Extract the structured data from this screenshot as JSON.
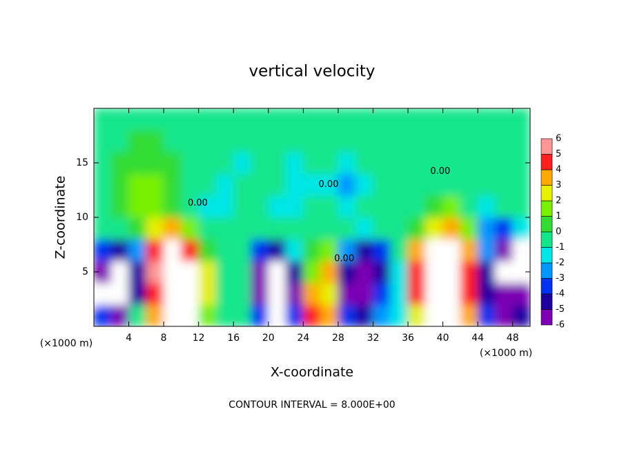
{
  "chart_data": {
    "type": "contour",
    "title": "vertical velocity",
    "x_label": "X-coordinate",
    "y_label": "Z-coordinate",
    "x_unit_left": "(×1000 m)",
    "x_unit_right": "(×1000 m)",
    "footer": "CONTOUR INTERVAL = 8.000E+00",
    "xlim": [
      0,
      50
    ],
    "ylim": [
      0,
      20
    ],
    "xticks": [
      4,
      8,
      12,
      16,
      20,
      24,
      28,
      32,
      36,
      40,
      44,
      48
    ],
    "yticks": [
      5,
      10,
      15
    ],
    "x": [
      1,
      3,
      5,
      7,
      9,
      11,
      13,
      15,
      17,
      19,
      21,
      23,
      25,
      27,
      29,
      31,
      33,
      35,
      37,
      39,
      41,
      43,
      45,
      47,
      49
    ],
    "y": [
      1,
      3,
      5,
      7,
      9,
      11,
      13,
      15,
      17,
      19
    ],
    "z": [
      [
        -3,
        -6,
        0,
        4,
        7,
        7,
        2,
        0,
        0,
        -3,
        -7,
        -3,
        5,
        4,
        -3,
        -4,
        -2,
        -1,
        3,
        7,
        7,
        4,
        -3,
        -5,
        -4
      ],
      [
        -7,
        -7,
        -4,
        5,
        8,
        8,
        3,
        0,
        0,
        -5,
        -8,
        -5,
        4,
        3,
        -5,
        -5,
        -3,
        -1,
        5,
        8,
        8,
        5,
        -4,
        -6,
        -5
      ],
      [
        -5,
        -7,
        -4,
        6,
        8,
        8,
        3,
        0,
        0,
        -5,
        -7,
        -4,
        2,
        4,
        -4,
        -5,
        -4,
        -1,
        5,
        8,
        8,
        5,
        -4,
        -7,
        -7
      ],
      [
        -3,
        -4,
        -2,
        5,
        7,
        5,
        1,
        0,
        0,
        -3,
        -4,
        -1,
        1,
        2,
        -2,
        -4,
        -3,
        0,
        4,
        7,
        8,
        4,
        -2,
        -6,
        -7
      ],
      [
        0,
        0,
        1,
        3,
        4,
        2,
        0,
        0,
        0,
        0,
        0,
        0,
        0,
        0,
        0,
        -1,
        0,
        0,
        1,
        3,
        4,
        2,
        -2,
        -3,
        -1
      ],
      [
        0,
        1,
        2,
        2,
        1,
        0,
        -1,
        -1,
        0,
        0,
        -1,
        -1,
        0,
        0,
        -1,
        0,
        0,
        0,
        0,
        1,
        2,
        0,
        -1,
        0,
        0
      ],
      [
        0,
        1,
        2,
        2,
        1,
        0,
        0,
        -1,
        0,
        0,
        0,
        -1,
        -1,
        -1,
        -2,
        -1,
        0,
        0,
        0,
        0,
        0,
        0,
        0,
        0,
        0
      ],
      [
        0,
        1,
        1,
        1,
        1,
        0,
        0,
        0,
        -1,
        0,
        0,
        -1,
        0,
        0,
        -1,
        0,
        0,
        0,
        0,
        0,
        0,
        0,
        0,
        0,
        0
      ],
      [
        0,
        0,
        1,
        1,
        0,
        0,
        0,
        0,
        0,
        0,
        0,
        0,
        0,
        0,
        0,
        0,
        0,
        0,
        0,
        0,
        0,
        0,
        0,
        0,
        0
      ],
      [
        0,
        0,
        0,
        0,
        0,
        0,
        0,
        0,
        0,
        0,
        0,
        0,
        0,
        0,
        0,
        0,
        0,
        0,
        0,
        0,
        0,
        0,
        0,
        0,
        0
      ]
    ],
    "colorbar": {
      "levels": [
        -6,
        -5,
        -4,
        -3,
        -2,
        -1,
        0,
        1,
        2,
        3,
        4,
        5,
        6
      ],
      "colors": [
        "#7d00b4",
        "#1e00a0",
        "#0032f0",
        "#0096ff",
        "#00e6e6",
        "#14e68c",
        "#32dc32",
        "#78f000",
        "#e6f000",
        "#ffaa00",
        "#ff1e1e",
        "#ff9696"
      ],
      "over_color": "#ffffff",
      "under_color": "#ffffff"
    },
    "contour_labels": [
      {
        "text": "0.00",
        "x": 11.9,
        "y": 11.3
      },
      {
        "text": "0.00",
        "x": 26.9,
        "y": 13.0
      },
      {
        "text": "0.00",
        "x": 39.7,
        "y": 14.2
      },
      {
        "text": "0.00",
        "x": 28.7,
        "y": 6.2
      }
    ]
  }
}
